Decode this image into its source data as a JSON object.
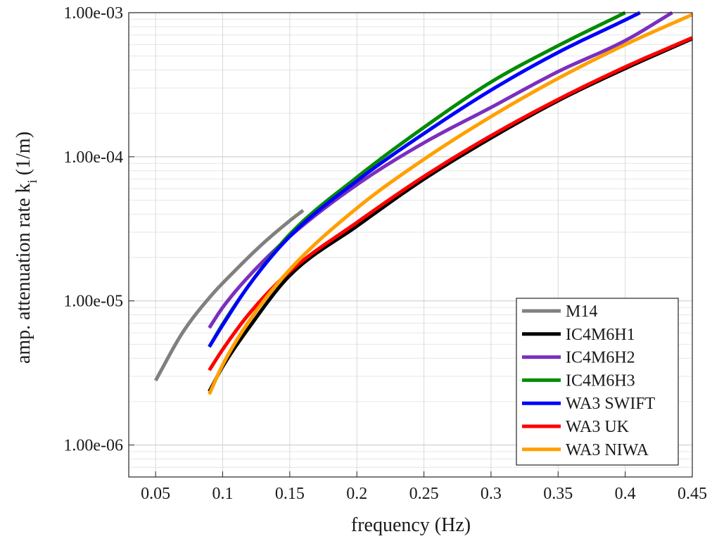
{
  "chart_data": {
    "type": "line",
    "title": "",
    "xlabel": "frequency (Hz)",
    "ylabel_main": "amp. attenuation rate k",
    "ylabel_sub": "i",
    "ylabel_unit": "(1/m)",
    "xlim": [
      0.03,
      0.45
    ],
    "ylim": [
      6e-07,
      0.001
    ],
    "yscale": "log",
    "grid": true,
    "legend_position": "bottom-right",
    "xticks": [
      0.05,
      0.1,
      0.15,
      0.2,
      0.25,
      0.3,
      0.35,
      0.4,
      0.45
    ],
    "xtick_labels": [
      "0.05",
      "0.1",
      "0.15",
      "0.2",
      "0.25",
      "0.3",
      "0.35",
      "0.4",
      "0.45"
    ],
    "yticks": [
      1e-06,
      1e-05,
      0.0001,
      0.001
    ],
    "ytick_labels": [
      "1.00e-06",
      "1.00e-05",
      "1.00e-04",
      "1.00e-03"
    ],
    "series": [
      {
        "name": "M14",
        "color": "#808080",
        "x": [
          0.05,
          0.07,
          0.09,
          0.11,
          0.13,
          0.15,
          0.16
        ],
        "y": [
          2.8e-06,
          6e-06,
          1.05e-05,
          1.65e-05,
          2.5e-05,
          3.6e-05,
          4.25e-05
        ]
      },
      {
        "name": "IC4M6H1",
        "color": "#000000",
        "x": [
          0.09,
          0.1,
          0.12,
          0.15,
          0.2,
          0.25,
          0.3,
          0.35,
          0.4,
          0.45
        ],
        "y": [
          2.35e-06,
          3.5e-06,
          6.6e-06,
          1.5e-05,
          3.3e-05,
          7e-05,
          0.000135,
          0.000245,
          0.00041,
          0.00066
        ]
      },
      {
        "name": "IC4M6H2",
        "color": "#7b2fbe",
        "x": [
          0.09,
          0.1,
          0.12,
          0.15,
          0.2,
          0.25,
          0.3,
          0.35,
          0.4,
          0.435
        ],
        "y": [
          6.5e-06,
          9e-06,
          1.5e-05,
          2.8e-05,
          6.4e-05,
          0.000125,
          0.00022,
          0.00039,
          0.00064,
          0.001
        ]
      },
      {
        "name": "IC4M6H3",
        "color": "#008c00",
        "x": [
          0.09,
          0.1,
          0.12,
          0.15,
          0.2,
          0.25,
          0.3,
          0.35,
          0.4
        ],
        "y": [
          4.8e-06,
          6.9e-06,
          1.3e-05,
          2.9e-05,
          7.2e-05,
          0.00016,
          0.00033,
          0.00059,
          0.001
        ]
      },
      {
        "name": "WA3 SWIFT",
        "color": "#0000ff",
        "x": [
          0.09,
          0.1,
          0.12,
          0.15,
          0.2,
          0.25,
          0.3,
          0.35,
          0.4,
          0.411
        ],
        "y": [
          4.8e-06,
          6.8e-06,
          1.3e-05,
          2.8e-05,
          6.8e-05,
          0.000145,
          0.00029,
          0.00053,
          0.00089,
          0.001
        ]
      },
      {
        "name": "WA3 UK",
        "color": "#ff0000",
        "x": [
          0.09,
          0.1,
          0.12,
          0.15,
          0.2,
          0.25,
          0.3,
          0.35,
          0.4,
          0.45
        ],
        "y": [
          3.3e-06,
          4.6e-06,
          8.2e-06,
          1.6e-05,
          3.5e-05,
          7.3e-05,
          0.00014,
          0.00025,
          0.00042,
          0.00067
        ]
      },
      {
        "name": "WA3 NIWA",
        "color": "#ffa000",
        "x": [
          0.09,
          0.1,
          0.12,
          0.15,
          0.2,
          0.25,
          0.3,
          0.35,
          0.4,
          0.45
        ],
        "y": [
          2.25e-06,
          3.6e-06,
          7.3e-06,
          1.65e-05,
          4.4e-05,
          9.6e-05,
          0.00019,
          0.00035,
          0.0006,
          0.00097
        ]
      }
    ]
  }
}
